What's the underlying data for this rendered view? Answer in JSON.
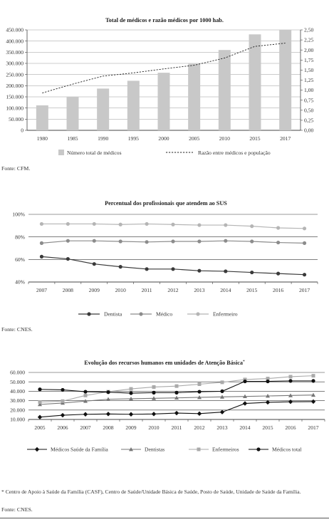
{
  "chart_data": [
    {
      "type": "bar",
      "title": "Total de médicos e razão médicos por 1000 hab.",
      "categories": [
        "1980",
        "1985",
        "1990",
        "1995",
        "2000",
        "2005",
        "2010",
        "2015",
        "2017"
      ],
      "series": [
        {
          "name": "Número total de médicos",
          "type": "bar",
          "axis": "left",
          "values": [
            112000,
            150000,
            187000,
            222000,
            258000,
            298000,
            360000,
            430000,
            450000
          ]
        },
        {
          "name": "Razão entre médicos e população",
          "type": "line",
          "style": "dashed",
          "axis": "right",
          "values": [
            0.93,
            1.15,
            1.35,
            1.43,
            1.53,
            1.62,
            1.8,
            2.09,
            2.17
          ]
        }
      ],
      "yticks_left": [
        "450.000",
        "400.000",
        "350.000",
        "300.000",
        "250.000",
        "200.000",
        "150.000",
        "100.000",
        "50.000",
        "0"
      ],
      "yticks_right": [
        "2,50",
        "2,25",
        "2,00",
        "1,75",
        "1,50",
        "1,25",
        "1,00",
        "0,75",
        "0,50",
        "0,25",
        "0,00"
      ],
      "ylim_left": [
        0,
        450000
      ],
      "ylim_right": [
        0,
        2.5
      ],
      "bar_color": "#c8c8c8",
      "legend_position": "bottom",
      "source": "Fonte: CFM."
    },
    {
      "type": "line",
      "title": "Percentual dos profissionais que atendem ao SUS",
      "categories": [
        "2007",
        "2008",
        "2009",
        "2010",
        "2011",
        "2012",
        "2013",
        "2014",
        "2015",
        "2016",
        "2017"
      ],
      "series": [
        {
          "name": "Dentista",
          "color": "#3a3a3a",
          "marker": "circle",
          "values": [
            62.5,
            60.5,
            56,
            53.5,
            51.5,
            51.5,
            50,
            49.5,
            48.5,
            47.5,
            46.5
          ]
        },
        {
          "name": "Médico",
          "color": "#8c8c8c",
          "marker": "circle",
          "values": [
            74.5,
            76.5,
            76.5,
            76,
            75.5,
            76,
            76,
            76.5,
            76,
            75,
            74.5
          ]
        },
        {
          "name": "Enfermeiro",
          "color": "#b5b5b5",
          "marker": "circle",
          "values": [
            91.5,
            91.5,
            91.5,
            91,
            91.5,
            91,
            90.5,
            90.5,
            89.5,
            88,
            87.5
          ]
        }
      ],
      "yticks": [
        "100%",
        "80%",
        "60%",
        "40%"
      ],
      "ylim": [
        40,
        100
      ],
      "legend_position": "bottom",
      "source": "Fonte: CNES."
    },
    {
      "type": "line",
      "title": "Evolução dos recursos humanos em unidades de Atenção Básica",
      "title_marker": "*",
      "categories": [
        "2005",
        "2006",
        "2007",
        "2008",
        "2009",
        "2010",
        "2011",
        "2012",
        "2013",
        "2014",
        "2015",
        "2016",
        "2017"
      ],
      "series": [
        {
          "name": "Médicos Saúde da Família",
          "color": "#111111",
          "marker": "diamond",
          "values": [
            12500,
            14500,
            15500,
            15800,
            15500,
            15800,
            16800,
            16200,
            17800,
            27000,
            28200,
            28800,
            29000
          ]
        },
        {
          "name": "Dentistas",
          "color": "#777777",
          "marker": "triangle",
          "values": [
            26000,
            27500,
            29500,
            31500,
            32000,
            32500,
            33000,
            33500,
            34000,
            34500,
            35000,
            35500,
            36000
          ]
        },
        {
          "name": "Enfermeiros",
          "color": "#aaaaaa",
          "marker": "square",
          "values": [
            28500,
            29500,
            35500,
            39500,
            42500,
            44500,
            45500,
            47500,
            49500,
            52500,
            53500,
            55500,
            56500
          ]
        },
        {
          "name": "Médicos total",
          "color": "#111111",
          "marker": "circle",
          "values": [
            42000,
            41500,
            39500,
            39000,
            38000,
            38500,
            38500,
            39500,
            40000,
            50500,
            50500,
            51000,
            51000
          ]
        }
      ],
      "yticks": [
        "60.000",
        "50.000",
        "40.000",
        "30.000",
        "20.000",
        "10.000"
      ],
      "ylim": [
        10000,
        60000
      ],
      "legend_position": "bottom",
      "footnote": "* Centro de Apoio à Saúde da Família (CASF), Centro de Saúde/Unidade Básica de Saúde, Posto de Saúde, Unidade de Saúde da Família.",
      "source": "Fonte: CNES."
    }
  ]
}
